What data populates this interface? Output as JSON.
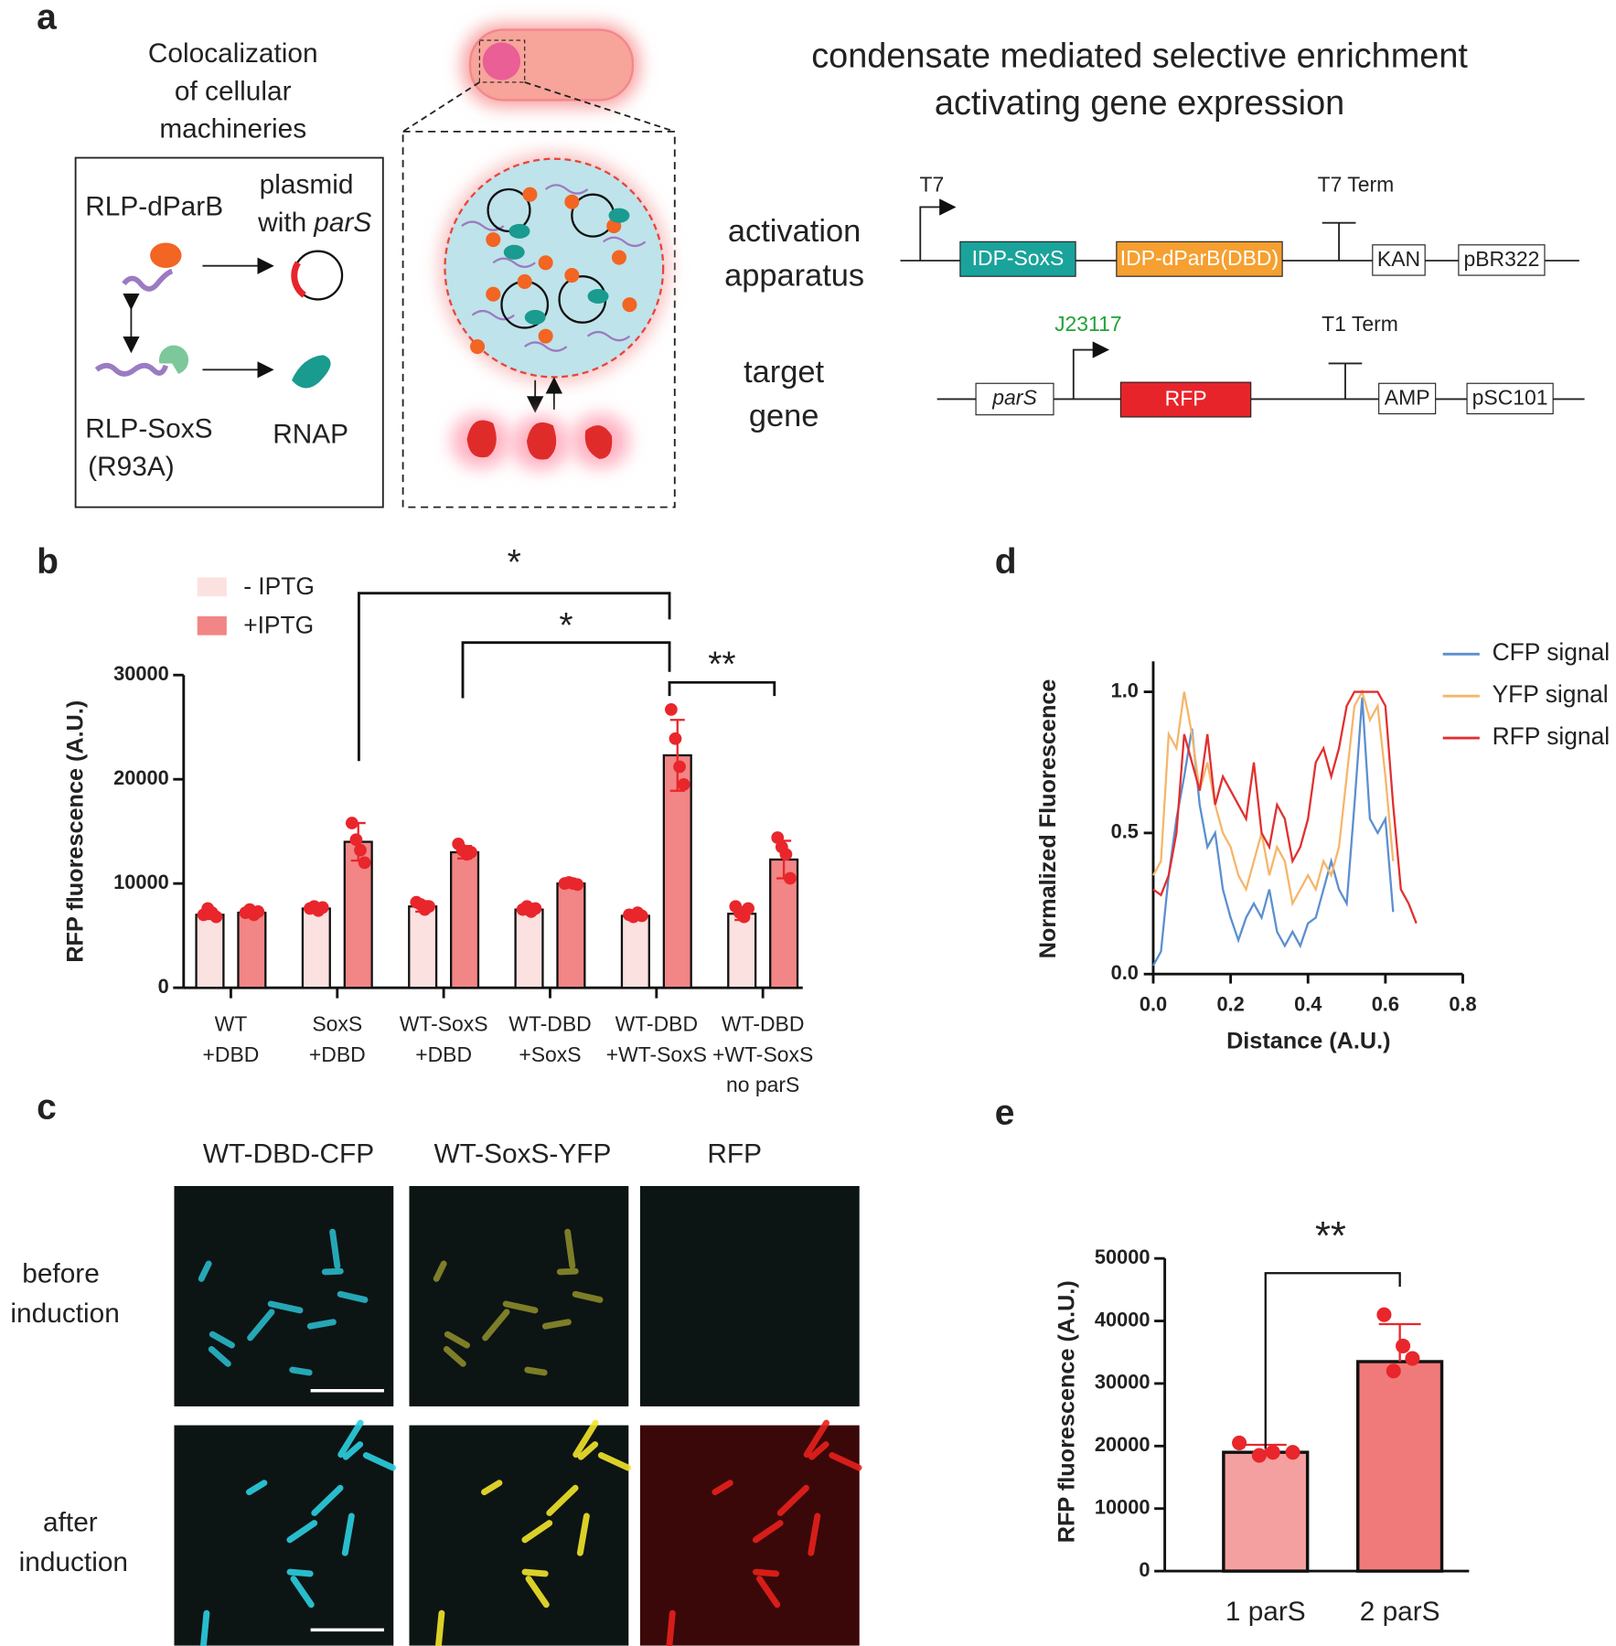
{
  "panel_labels": [
    "a",
    "b",
    "c",
    "d",
    "e"
  ],
  "panel_a": {
    "heading": [
      "Colocalization",
      "of cellular",
      "machineries"
    ],
    "rlp_dparb": "RLP-dParB",
    "plasmid": [
      "plasmid",
      "with",
      "parS"
    ],
    "rlp_soxs": [
      "RLP-SoxS",
      "(R93A)"
    ],
    "rnap": "RNAP",
    "title": [
      "condensate mediated selective enrichment",
      "activating gene expression"
    ],
    "activation": [
      "activation",
      "apparatus"
    ],
    "target": [
      "target",
      "gene"
    ],
    "construct1": {
      "promoter": "T7",
      "terminator": "T7 Term",
      "parts": [
        "IDP-SoxS",
        "IDP-dParB(DBD)",
        "KAN",
        "pBR322"
      ]
    },
    "construct2": {
      "promoter": "J23117",
      "terminator": "T1 Term",
      "parts": [
        "parS",
        "RFP",
        "AMP",
        "pSC101"
      ]
    }
  },
  "panel_c": {
    "columns": [
      "WT-DBD-CFP",
      "WT-SoxS-YFP",
      "RFP"
    ],
    "rows": [
      [
        "before",
        "induction"
      ],
      [
        "after",
        "induction"
      ]
    ]
  },
  "chart_data": [
    {
      "type": "bar",
      "y_label": "RFP fluorescence (A.U.)",
      "categories": [
        [
          "WT",
          "+DBD"
        ],
        [
          "SoxS",
          "+DBD"
        ],
        [
          "WT-SoxS",
          "+DBD"
        ],
        [
          "WT-DBD",
          "+SoxS"
        ],
        [
          "WT-DBD",
          "+WT-SoxS"
        ],
        [
          "WT-DBD",
          "+WT-SoxS",
          "no parS"
        ]
      ],
      "series": [
        {
          "name": "- IPTG",
          "color": "#fce1e1",
          "values": [
            7000,
            7600,
            7800,
            7500,
            6900,
            7100
          ],
          "errors": [
            400,
            300,
            500,
            300,
            200,
            600
          ],
          "points": [
            [
              7000,
              7600,
              7200,
              6800
            ],
            [
              7600,
              7800,
              7400,
              7700
            ],
            [
              8200,
              8000,
              7500,
              7800
            ],
            [
              7500,
              7800,
              7300,
              7600
            ],
            [
              7000,
              6800,
              7200,
              6900
            ],
            [
              7800,
              7200,
              6800,
              7600
            ]
          ]
        },
        {
          "name": "+IPTG",
          "color": "#f28585",
          "values": [
            7200,
            14000,
            13000,
            10000,
            22300,
            12300
          ],
          "errors": [
            300,
            1800,
            600,
            100,
            3400,
            1800
          ],
          "points": [
            [
              7200,
              7500,
              7000,
              7300
            ],
            [
              15800,
              14200,
              13200,
              12000
            ],
            [
              13800,
              13200,
              12800,
              13000
            ],
            [
              10000,
              10100,
              10000,
              9900
            ],
            [
              26700,
              23900,
              21200,
              19500
            ],
            [
              14400,
              13500,
              12800,
              10500
            ]
          ]
        }
      ],
      "point_color": "#e8262b",
      "ylim": [
        0,
        30000
      ],
      "yticks": [
        0,
        10000,
        20000,
        30000
      ],
      "annotations": [
        "*",
        "*",
        "**"
      ],
      "legend": "top-left"
    },
    {
      "type": "line",
      "y_label": "Normalized Fluorescence",
      "x_label": "Distance (A.U.)",
      "x": [
        0,
        0.02,
        0.04,
        0.06,
        0.08,
        0.1,
        0.12,
        0.14,
        0.16,
        0.18,
        0.2,
        0.22,
        0.24,
        0.26,
        0.28,
        0.3,
        0.32,
        0.34,
        0.36,
        0.38,
        0.4,
        0.42,
        0.44,
        0.46,
        0.48,
        0.5,
        0.52,
        0.54,
        0.56,
        0.58,
        0.6,
        0.62,
        0.64,
        0.66,
        0.68
      ],
      "series": [
        {
          "name": "CFP signal",
          "color": "#5b8fd0",
          "values": [
            0.03,
            0.08,
            0.35,
            0.55,
            0.7,
            0.87,
            0.6,
            0.45,
            0.5,
            0.3,
            0.2,
            0.12,
            0.2,
            0.25,
            0.2,
            0.3,
            0.15,
            0.1,
            0.15,
            0.1,
            0.18,
            0.2,
            0.3,
            0.4,
            0.3,
            0.25,
            0.6,
            0.98,
            0.55,
            0.5,
            0.55,
            0.22,
            null,
            null,
            null
          ]
        },
        {
          "name": "YFP signal",
          "color": "#f5b66b",
          "values": [
            0.35,
            0.4,
            0.85,
            0.8,
            1.0,
            0.85,
            0.65,
            0.75,
            0.6,
            0.5,
            0.45,
            0.35,
            0.3,
            0.4,
            0.5,
            0.35,
            0.45,
            0.4,
            0.25,
            0.3,
            0.35,
            0.3,
            0.4,
            0.35,
            0.45,
            0.7,
            0.95,
            1.0,
            0.9,
            0.95,
            0.7,
            0.4,
            null,
            null,
            null
          ]
        },
        {
          "name": "RFP signal",
          "color": "#e03030",
          "values": [
            0.3,
            0.28,
            0.35,
            0.5,
            0.85,
            0.75,
            0.65,
            0.85,
            0.6,
            0.7,
            0.65,
            0.6,
            0.55,
            0.75,
            0.5,
            0.45,
            0.6,
            0.55,
            0.4,
            0.45,
            0.55,
            0.75,
            0.8,
            0.7,
            0.8,
            0.95,
            1.0,
            1.0,
            1.0,
            1.0,
            0.95,
            0.6,
            0.3,
            0.25,
            0.18
          ]
        }
      ],
      "xlim": [
        0,
        0.8
      ],
      "xticks": [
        {
          "value": 0,
          "label": "0.0"
        },
        0.2,
        0.4,
        0.6,
        0.8
      ],
      "ylim": [
        0,
        1.0
      ],
      "yticks": [
        {
          "value": 0,
          "label": "0.0"
        },
        0.5,
        {
          "value": 1,
          "label": "1.0"
        }
      ],
      "legend": "right"
    },
    {
      "type": "bar",
      "y_label": "RFP fluorescence (A.U.)",
      "categories": [
        "1 parS",
        "2 parS"
      ],
      "values": [
        19000,
        33500
      ],
      "errors": [
        1200,
        6000
      ],
      "colors": [
        "#f5a0a0",
        "#f07a7a"
      ],
      "points": [
        [
          20500,
          19000,
          18500,
          19000
        ],
        [
          41000,
          36000,
          32000,
          34000
        ]
      ],
      "point_color": "#e8262b",
      "ylim": [
        0,
        50000
      ],
      "yticks": [
        0,
        10000,
        20000,
        30000,
        40000,
        50000
      ],
      "annotations": [
        "**"
      ]
    }
  ]
}
